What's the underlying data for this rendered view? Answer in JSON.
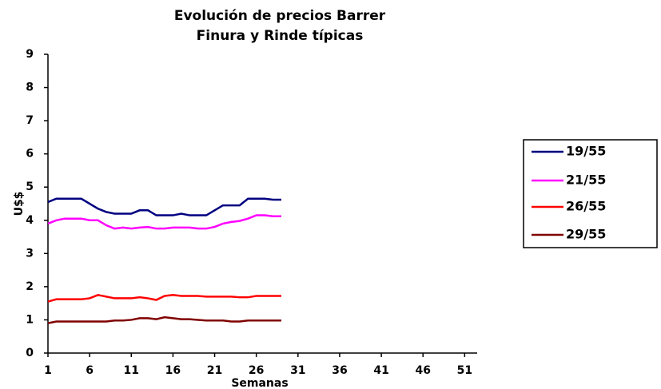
{
  "chart_data": {
    "type": "line",
    "title": "Evolución de precios Barrer",
    "subtitle": "Finura y Rinde típicas",
    "x_label": "Semanas",
    "y_label": "U$$",
    "x": [
      1,
      2,
      3,
      4,
      5,
      6,
      7,
      8,
      9,
      10,
      11,
      12,
      13,
      14,
      15,
      16,
      17,
      18,
      19,
      20,
      21,
      22,
      23,
      24,
      25,
      26,
      27,
      28,
      29
    ],
    "series": [
      {
        "name": "19/55",
        "color": "#000080",
        "values": [
          4.55,
          4.65,
          4.65,
          4.65,
          4.65,
          4.5,
          4.35,
          4.25,
          4.2,
          4.2,
          4.2,
          4.3,
          4.3,
          4.15,
          4.15,
          4.15,
          4.2,
          4.15,
          4.15,
          4.15,
          4.3,
          4.45,
          4.45,
          4.45,
          4.65,
          4.65,
          4.65,
          4.62,
          4.62
        ]
      },
      {
        "name": "21/55",
        "color": "#ff00ff",
        "values": [
          3.9,
          4.0,
          4.05,
          4.05,
          4.05,
          4.0,
          4.0,
          3.85,
          3.75,
          3.78,
          3.75,
          3.78,
          3.8,
          3.75,
          3.75,
          3.78,
          3.78,
          3.78,
          3.75,
          3.75,
          3.8,
          3.9,
          3.95,
          3.98,
          4.05,
          4.15,
          4.15,
          4.12,
          4.12
        ]
      },
      {
        "name": "26/55",
        "color": "#ff0000",
        "values": [
          1.55,
          1.62,
          1.62,
          1.62,
          1.62,
          1.65,
          1.75,
          1.7,
          1.65,
          1.65,
          1.65,
          1.68,
          1.65,
          1.6,
          1.72,
          1.75,
          1.72,
          1.72,
          1.72,
          1.7,
          1.7,
          1.7,
          1.7,
          1.68,
          1.68,
          1.72,
          1.72,
          1.72,
          1.72
        ]
      },
      {
        "name": "29/55",
        "color": "#800000",
        "values": [
          0.9,
          0.95,
          0.95,
          0.95,
          0.95,
          0.95,
          0.95,
          0.95,
          0.98,
          0.98,
          1.0,
          1.05,
          1.05,
          1.02,
          1.08,
          1.05,
          1.02,
          1.02,
          1.0,
          0.98,
          0.98,
          0.98,
          0.95,
          0.95,
          0.98,
          0.98,
          0.98,
          0.98,
          0.98
        ]
      }
    ],
    "xlim": [
      1,
      52.5
    ],
    "xticks": [
      1,
      6,
      11,
      16,
      21,
      26,
      31,
      36,
      41,
      46,
      51
    ],
    "ylim": [
      0,
      9
    ],
    "yticks": [
      0,
      1,
      2,
      3,
      4,
      5,
      6,
      7,
      8,
      9
    ],
    "grid": false,
    "legend": "right"
  }
}
